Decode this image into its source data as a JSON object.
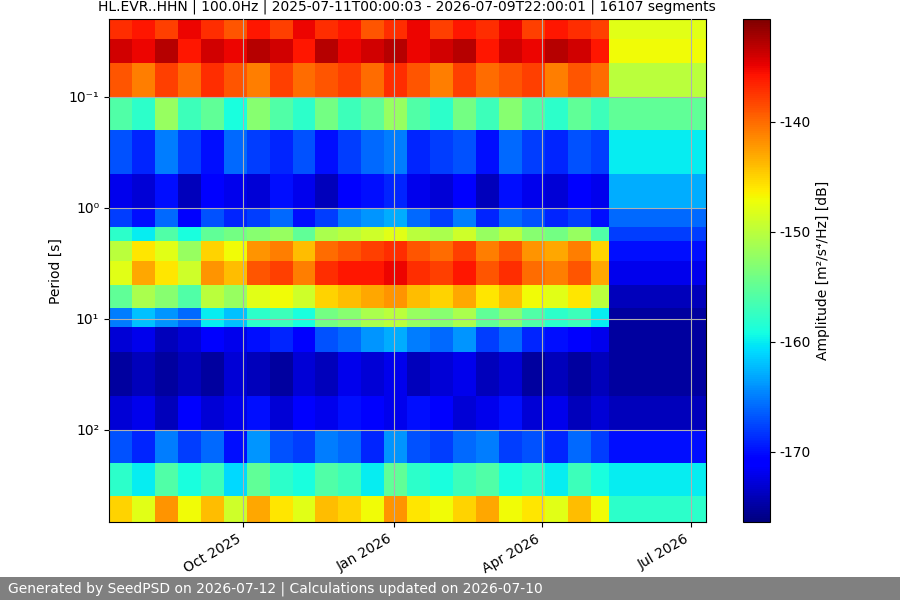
{
  "chart_data": {
    "type": "heatmap",
    "title": "HL.EVR..HHN | 100.0Hz | 2025-07-11T00:00:03 - 2026-07-09T22:00:01 | 16107 segments",
    "ylabel": "Period [s]",
    "colorbar_label": "Amplitude [m²/s⁴/Hz] [dB]",
    "footer": "Generated by SeedPSD on 2026-07-12 | Calculations updated on 2026-07-10",
    "log": "y",
    "grid": true,
    "x": [
      "2025-07-11",
      "2025-07-25",
      "2025-08-08",
      "2025-08-22",
      "2025-09-05",
      "2025-09-19",
      "2025-10-03",
      "2025-10-17",
      "2025-10-31",
      "2025-11-14",
      "2025-11-28",
      "2025-12-12",
      "2025-12-26",
      "2026-01-09",
      "2026-01-23",
      "2026-02-06",
      "2026-02-20",
      "2026-03-06",
      "2026-03-20",
      "2026-04-03",
      "2026-04-17",
      "2026-05-01",
      "2026-05-12",
      "2026-07-10"
    ],
    "y": [
      0.02,
      0.03,
      0.05,
      0.1,
      0.2,
      0.5,
      1,
      1.5,
      2,
      3,
      5,
      8,
      12,
      20,
      50,
      100,
      200,
      400,
      680
    ],
    "xlim": [
      "2025-07-11",
      "2026-07-10"
    ],
    "xticks": [
      {
        "value": "2025-10-01",
        "label": "Oct 2025"
      },
      {
        "value": "2026-01-01",
        "label": "Jan 2026"
      },
      {
        "value": "2026-04-01",
        "label": "Apr 2026"
      },
      {
        "value": "2026-07-01",
        "label": "Jul 2026"
      }
    ],
    "ylim": [
      680,
      0.02
    ],
    "yticks": [
      {
        "value": 0.1,
        "label": "10⁻¹"
      },
      {
        "value": 1,
        "label": "10⁰"
      },
      {
        "value": 10,
        "label": "10¹"
      },
      {
        "value": 100,
        "label": "10²"
      }
    ],
    "clim": [
      -176.4,
      -130.7
    ],
    "cticks": [
      -140,
      -150,
      -160,
      -170
    ],
    "cells": [
      [
        -137,
        -136,
        -138,
        -135,
        -137,
        -139,
        -136,
        -138,
        -135,
        -137,
        -136,
        -139,
        -137,
        -135,
        -138,
        -136,
        -137,
        -135,
        -138,
        -136,
        -137,
        -138,
        -148
      ],
      [
        -134,
        -135,
        -133,
        -136,
        -134,
        -135,
        -133,
        -134,
        -136,
        -133,
        -135,
        -134,
        -133,
        -135,
        -134,
        -133,
        -136,
        -134,
        -135,
        -133,
        -134,
        -136,
        -147
      ],
      [
        -139,
        -141,
        -138,
        -140,
        -137,
        -139,
        -141,
        -138,
        -140,
        -139,
        -138,
        -140,
        -137,
        -139,
        -141,
        -138,
        -140,
        -139,
        -138,
        -141,
        -139,
        -140,
        -150
      ],
      [
        -156,
        -158,
        -152,
        -157,
        -155,
        -159,
        -153,
        -156,
        -158,
        -154,
        -157,
        -155,
        -152,
        -156,
        -158,
        -154,
        -157,
        -153,
        -156,
        -158,
        -155,
        -157,
        -155
      ],
      [
        -167,
        -169,
        -165,
        -168,
        -170,
        -166,
        -168,
        -169,
        -167,
        -170,
        -168,
        -166,
        -165,
        -169,
        -168,
        -167,
        -170,
        -166,
        -168,
        -169,
        -167,
        -168,
        -160
      ],
      [
        -172,
        -173,
        -170,
        -174,
        -171,
        -172,
        -173,
        -170,
        -172,
        -174,
        -171,
        -170,
        -169,
        -172,
        -173,
        -171,
        -174,
        -170,
        -172,
        -173,
        -171,
        -172,
        -163
      ],
      [
        -168,
        -170,
        -166,
        -171,
        -167,
        -169,
        -168,
        -166,
        -170,
        -168,
        -165,
        -164,
        -163,
        -166,
        -168,
        -165,
        -169,
        -166,
        -167,
        -169,
        -168,
        -170,
        -166
      ],
      [
        -158,
        -160,
        -156,
        -159,
        -155,
        -154,
        -153,
        -152,
        -155,
        -151,
        -150,
        -149,
        -148,
        -150,
        -151,
        -149,
        -152,
        -150,
        -153,
        -154,
        -152,
        -156,
        -168
      ],
      [
        -150,
        -146,
        -148,
        -152,
        -145,
        -147,
        -142,
        -141,
        -144,
        -140,
        -139,
        -138,
        -137,
        -139,
        -140,
        -138,
        -141,
        -139,
        -142,
        -143,
        -141,
        -145,
        -170
      ],
      [
        -148,
        -143,
        -146,
        -149,
        -142,
        -144,
        -139,
        -138,
        -141,
        -137,
        -136,
        -136,
        -135,
        -137,
        -138,
        -136,
        -139,
        -137,
        -140,
        -141,
        -139,
        -143,
        -172
      ],
      [
        -155,
        -151,
        -153,
        -156,
        -150,
        -152,
        -148,
        -147,
        -149,
        -145,
        -144,
        -143,
        -142,
        -144,
        -145,
        -143,
        -146,
        -144,
        -147,
        -148,
        -146,
        -150,
        -174
      ],
      [
        -165,
        -162,
        -164,
        -166,
        -160,
        -162,
        -158,
        -157,
        -159,
        -154,
        -153,
        -151,
        -150,
        -152,
        -153,
        -151,
        -155,
        -153,
        -156,
        -158,
        -157,
        -160,
        -175
      ],
      [
        -173,
        -172,
        -174,
        -173,
        -171,
        -172,
        -170,
        -169,
        -171,
        -167,
        -166,
        -164,
        -163,
        -165,
        -166,
        -164,
        -168,
        -166,
        -169,
        -170,
        -171,
        -172,
        -175
      ],
      [
        -175,
        -174,
        -175,
        -174,
        -175,
        -173,
        -174,
        -175,
        -173,
        -174,
        -172,
        -173,
        -172,
        -174,
        -173,
        -172,
        -174,
        -173,
        -175,
        -174,
        -175,
        -174,
        -175
      ],
      [
        -173,
        -172,
        -174,
        -171,
        -173,
        -172,
        -170,
        -173,
        -171,
        -172,
        -170,
        -171,
        -172,
        -170,
        -171,
        -173,
        -172,
        -170,
        -173,
        -172,
        -174,
        -173,
        -174
      ],
      [
        -167,
        -169,
        -165,
        -168,
        -166,
        -170,
        -164,
        -167,
        -168,
        -165,
        -166,
        -169,
        -164,
        -167,
        -168,
        -166,
        -165,
        -168,
        -167,
        -169,
        -166,
        -168,
        -170
      ],
      [
        -158,
        -160,
        -156,
        -159,
        -157,
        -161,
        -155,
        -158,
        -159,
        -156,
        -157,
        -160,
        -155,
        -158,
        -159,
        -157,
        -156,
        -159,
        -158,
        -160,
        -157,
        -159,
        -160
      ],
      [
        -145,
        -148,
        -142,
        -147,
        -144,
        -149,
        -143,
        -146,
        -148,
        -144,
        -145,
        -147,
        -142,
        -146,
        -147,
        -145,
        -143,
        -147,
        -146,
        -148,
        -144,
        -147,
        -158
      ]
    ]
  }
}
